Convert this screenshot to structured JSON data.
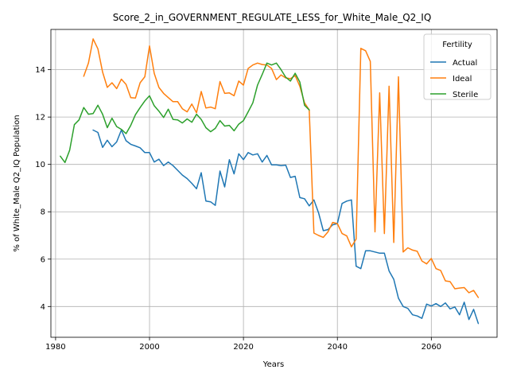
{
  "chart_data": {
    "type": "line",
    "title": "Score_2_in_GOVERNMENT_REGULATE_LESS_for_White_Male_Q2_IQ",
    "xlabel": "Years",
    "ylabel": "% of White_Male Q2_IQ Population",
    "xlim": [
      1979,
      2074
    ],
    "ylim": [
      2.7,
      15.7
    ],
    "xticks": [
      1980,
      2000,
      2020,
      2040,
      2060
    ],
    "yticks": [
      4,
      6,
      8,
      10,
      12,
      14
    ],
    "grid": true,
    "legend": {
      "title": "Fertility",
      "position": "top-right"
    },
    "series": [
      {
        "name": "Actual",
        "color": "#1f77b4",
        "x": [
          1988,
          1989,
          1990,
          1991,
          1992,
          1993,
          1994,
          1995,
          1996,
          1997,
          1998,
          1999,
          2000,
          2001,
          2002,
          2003,
          2004,
          2005,
          2006,
          2007,
          2008,
          2009,
          2010,
          2011,
          2012,
          2013,
          2014,
          2015,
          2016,
          2017,
          2018,
          2019,
          2020,
          2021,
          2022,
          2023,
          2024,
          2025,
          2026,
          2027,
          2028,
          2029,
          2030,
          2031,
          2032,
          2033,
          2034,
          2035,
          2036,
          2037,
          2038,
          2039,
          2040,
          2041,
          2042,
          2043,
          2044,
          2045,
          2046,
          2047,
          2048,
          2049,
          2050,
          2051,
          2052,
          2053,
          2054,
          2055,
          2056,
          2057,
          2058,
          2059,
          2060,
          2061,
          2062,
          2063,
          2064,
          2065,
          2066,
          2067,
          2068,
          2069,
          2070
        ],
        "values": [
          11.45,
          11.35,
          10.72,
          11.02,
          10.75,
          10.95,
          11.45,
          11.0,
          10.85,
          10.78,
          10.7,
          10.5,
          10.5,
          10.1,
          10.22,
          9.95,
          10.1,
          9.95,
          9.75,
          9.55,
          9.4,
          9.2,
          8.97,
          9.65,
          8.45,
          8.42,
          8.27,
          9.72,
          9.05,
          10.2,
          9.6,
          10.45,
          10.2,
          10.5,
          10.4,
          10.45,
          10.1,
          10.38,
          9.98,
          9.98,
          9.95,
          9.97,
          9.45,
          9.5,
          8.6,
          8.55,
          8.25,
          8.5,
          7.95,
          7.2,
          7.25,
          7.45,
          7.5,
          8.35,
          8.45,
          8.5,
          5.7,
          5.6,
          6.35,
          6.35,
          6.3,
          6.25,
          6.25,
          5.5,
          5.15,
          4.35,
          4.0,
          3.92,
          3.65,
          3.6,
          3.5,
          4.1,
          4.02,
          4.12,
          4.0,
          4.15,
          3.9,
          3.98,
          3.65,
          4.18,
          3.45,
          3.88,
          3.28
        ]
      },
      {
        "name": "Ideal",
        "color": "#ff7f0e",
        "x": [
          1986,
          1987,
          1988,
          1989,
          1990,
          1991,
          1992,
          1993,
          1994,
          1995,
          1996,
          1997,
          1998,
          1999,
          2000,
          2001,
          2002,
          2003,
          2004,
          2005,
          2006,
          2007,
          2008,
          2009,
          2010,
          2011,
          2012,
          2013,
          2014,
          2015,
          2016,
          2017,
          2018,
          2019,
          2020,
          2021,
          2022,
          2023,
          2024,
          2025,
          2026,
          2027,
          2028,
          2029,
          2030,
          2031,
          2032,
          2033,
          2034,
          2035,
          2036,
          2037,
          2038,
          2039,
          2040,
          2041,
          2042,
          2043,
          2044,
          2045,
          2046,
          2047,
          2048,
          2049,
          2050,
          2051,
          2052,
          2053,
          2054,
          2055,
          2056,
          2057,
          2058,
          2059,
          2060,
          2061,
          2062,
          2063,
          2064,
          2065,
          2066,
          2067,
          2068,
          2069,
          2070
        ],
        "values": [
          13.72,
          14.28,
          15.3,
          14.88,
          13.9,
          13.25,
          13.45,
          13.2,
          13.6,
          13.38,
          12.82,
          12.8,
          13.45,
          13.7,
          15.0,
          13.85,
          13.25,
          13.0,
          12.82,
          12.65,
          12.65,
          12.35,
          12.22,
          12.55,
          12.18,
          13.08,
          12.38,
          12.42,
          12.35,
          13.5,
          13.0,
          13.02,
          12.9,
          13.52,
          13.35,
          14.05,
          14.2,
          14.28,
          14.22,
          14.2,
          14.05,
          13.58,
          13.78,
          13.65,
          13.62,
          13.75,
          13.3,
          12.6,
          12.3,
          7.1,
          7.0,
          6.92,
          7.15,
          7.55,
          7.5,
          7.08,
          6.98,
          6.52,
          6.85,
          14.9,
          14.8,
          14.35,
          7.15,
          13.02,
          7.08,
          13.3,
          6.7,
          13.7,
          6.3,
          6.48,
          6.38,
          6.33,
          5.92,
          5.8,
          6.03,
          5.6,
          5.52,
          5.08,
          5.05,
          4.75,
          4.78,
          4.8,
          4.58,
          4.68,
          4.38
        ]
      },
      {
        "name": "Sterile",
        "color": "#2ca02c",
        "x": [
          1981,
          1982,
          1983,
          1984,
          1985,
          1986,
          1987,
          1988,
          1989,
          1990,
          1991,
          1992,
          1993,
          1994,
          1995,
          1996,
          1997,
          1998,
          1999,
          2000,
          2001,
          2002,
          2003,
          2004,
          2005,
          2006,
          2007,
          2008,
          2009,
          2010,
          2011,
          2012,
          2013,
          2014,
          2015,
          2016,
          2017,
          2018,
          2019,
          2020,
          2021,
          2022,
          2023,
          2024,
          2025,
          2026,
          2027,
          2028,
          2029,
          2030,
          2031,
          2032,
          2033,
          2034
        ],
        "values": [
          10.35,
          10.08,
          10.6,
          11.68,
          11.88,
          12.4,
          12.12,
          12.15,
          12.5,
          12.12,
          11.55,
          11.95,
          11.6,
          11.48,
          11.3,
          11.65,
          12.1,
          12.4,
          12.68,
          12.9,
          12.48,
          12.25,
          11.98,
          12.33,
          11.9,
          11.88,
          11.75,
          11.92,
          11.78,
          12.12,
          11.9,
          11.55,
          11.38,
          11.52,
          11.85,
          11.62,
          11.65,
          11.42,
          11.7,
          11.85,
          12.22,
          12.6,
          13.35,
          13.8,
          14.28,
          14.2,
          14.28,
          14.0,
          13.68,
          13.52,
          13.85,
          13.48,
          12.5,
          12.3
        ]
      }
    ]
  }
}
